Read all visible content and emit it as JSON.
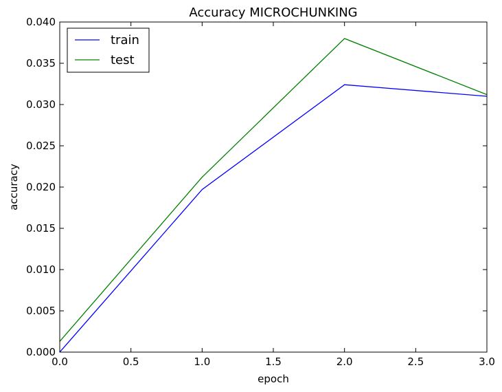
{
  "chart_data": {
    "type": "line",
    "title": "Accuracy MICROCHUNKING",
    "xlabel": "epoch",
    "ylabel": "accuracy",
    "x": [
      0,
      1,
      2,
      3
    ],
    "xlim": [
      0,
      3
    ],
    "ylim": [
      0,
      0.04
    ],
    "xticks": [
      0,
      0.5,
      1,
      1.5,
      2,
      2.5,
      3
    ],
    "xtick_labels": [
      "0.0",
      "0.5",
      "1.0",
      "1.5",
      "2.0",
      "2.5",
      "3.0"
    ],
    "yticks": [
      0,
      0.005,
      0.01,
      0.015,
      0.02,
      0.025,
      0.03,
      0.035,
      0.04
    ],
    "ytick_labels": [
      "0.000",
      "0.005",
      "0.010",
      "0.015",
      "0.020",
      "0.025",
      "0.030",
      "0.035",
      "0.040"
    ],
    "grid": false,
    "legend_position": "top-left",
    "series": [
      {
        "name": "train",
        "color": "#0000ff",
        "values": [
          0.0,
          0.0197,
          0.0324,
          0.031
        ]
      },
      {
        "name": "test",
        "color": "#008000",
        "values": [
          0.0013,
          0.0212,
          0.038,
          0.0312
        ]
      }
    ]
  }
}
